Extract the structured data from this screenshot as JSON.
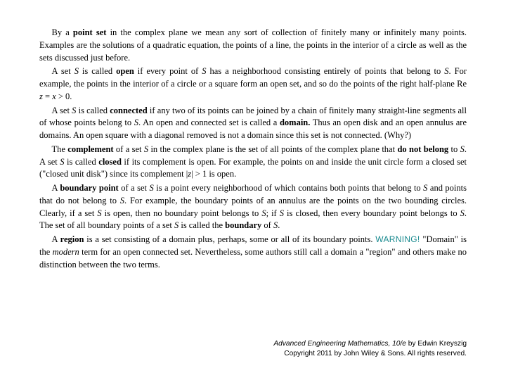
{
  "paragraphs": {
    "p1_a": "By a ",
    "p1_b": "point set",
    "p1_c": " in the complex plane we mean any sort of collection of finitely many or infinitely many points. Examples are the solutions of a quadratic equation, the points of a line, the points in the interior of a circle as well as the sets discussed just before.",
    "p2_a": "A set ",
    "p2_S": "S",
    "p2_b": " is called ",
    "p2_c": "open",
    "p2_d": " if every point of ",
    "p2_e": " has a neighborhood consisting entirely of points that belong to ",
    "p2_f": ". For example, the points in the interior of a circle or a square form an open set, and so do the points of the right half-plane Re ",
    "p2_g": "z",
    "p2_h": " = ",
    "p2_i": "x",
    "p2_j": " > 0.",
    "p3_a": "A set ",
    "p3_b": " is called ",
    "p3_c": "connected",
    "p3_d": " if any two of its points can be joined by a chain of finitely many straight-line segments all of whose points belong to ",
    "p3_e": ". An open and connected set is called a ",
    "p3_f": "domain.",
    "p3_g": " Thus an open disk and an open annulus are domains. An open square with a diagonal removed is not a domain since this set is not connected. (Why?)",
    "p4_a": "The ",
    "p4_b": "complement",
    "p4_c": " of a set ",
    "p4_d": " in the complex plane is the set of all points of the complex plane that ",
    "p4_e": "do not belong",
    "p4_f": " to ",
    "p4_g": ". A set ",
    "p4_h": " is called ",
    "p4_i": "closed",
    "p4_j": " if its complement is open. For example, the points on and inside the unit circle form a closed set (\"closed unit disk\") since its complement |",
    "p4_k": "z",
    "p4_l": "| > 1 is open.",
    "p5_a": "A ",
    "p5_b": "boundary point",
    "p5_c": " of a set ",
    "p5_d": " is a point every neighborhood of which contains both points that belong to ",
    "p5_e": " and points that do not belong to ",
    "p5_f": ". For example, the boundary points of an annulus are the points on the two bounding circles. Clearly, if a set ",
    "p5_g": " is open, then no boundary point belongs to ",
    "p5_h": "; if ",
    "p5_i": " is closed, then every boundary point belongs to ",
    "p5_j": ". The set of all boundary points of a set ",
    "p5_k": " is called the ",
    "p5_l": "boundary",
    "p5_m": " of ",
    "p5_n": ".",
    "p6_a": "A ",
    "p6_b": "region",
    "p6_c": " is a set consisting of a domain plus, perhaps, some or all of its boundary points. ",
    "p6_warn": "WARNING!",
    "p6_d": " \"Domain\" is the ",
    "p6_e": "modern",
    "p6_f": " term for an open connected set. Nevertheless, some authors still call a domain a \"region\" and others make no distinction between the two terms."
  },
  "footer": {
    "title": "Advanced Engineering Mathematics, 10/e",
    "author": " by Edwin Kreyszig",
    "copyright": "Copyright 2011 by John Wiley & Sons.  All rights reserved."
  }
}
